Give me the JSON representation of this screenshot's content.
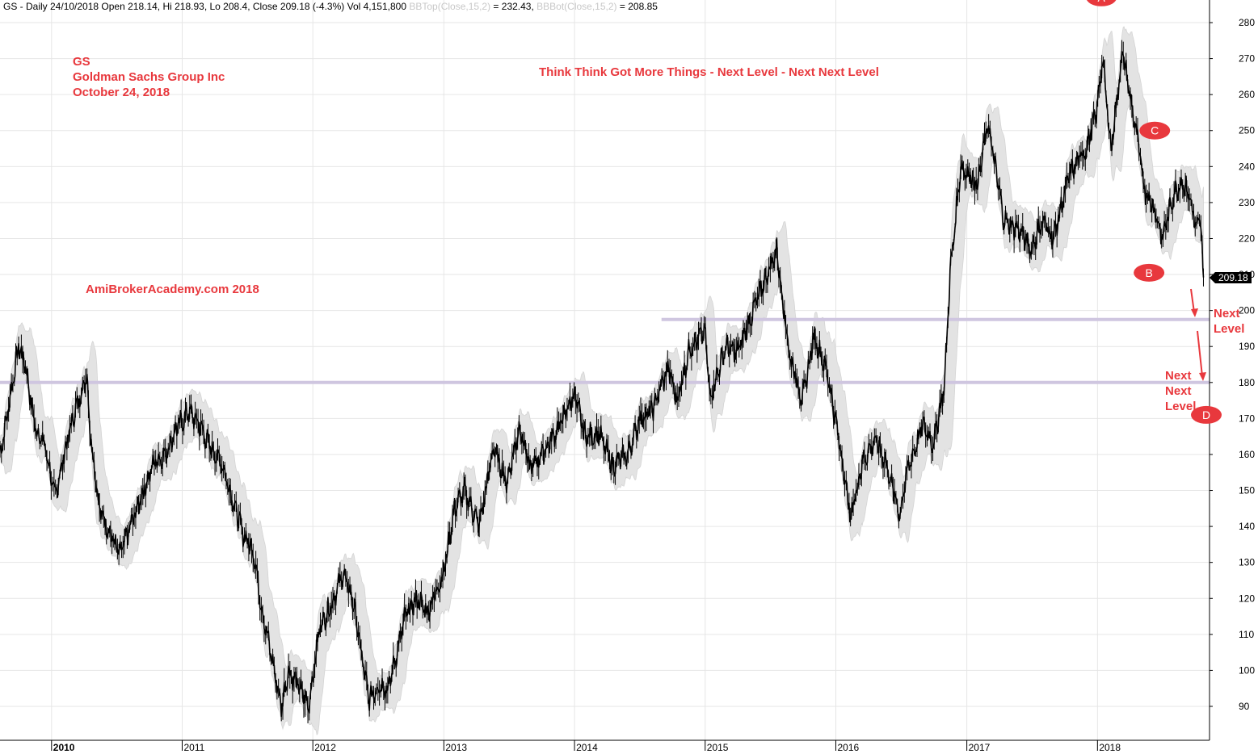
{
  "header": {
    "prefix": "GS - Daily 24/10/2018 Open 218.14, Hi 218.93, Lo 208.4, Close 209.18 (-4.3%) Vol 4,151,800",
    "bbtop_label": "BBTop(Close,15,2)",
    "bbtop_value": "= 232.43,",
    "bbbot_label": "BBBot(Close,15,2)",
    "bbbot_value": "= 208.85"
  },
  "annotations": {
    "ticker": "GS",
    "company": "Goldman Sachs Group Inc",
    "date": "October 24, 2018",
    "tagline": "Think Think Got More Things - Next Level - Next Next Level",
    "watermark": "AmiBrokerAcademy.com  2018",
    "next_level": [
      "Next",
      "Level"
    ],
    "next_next_level": [
      "Next",
      "Next",
      "Level"
    ],
    "markers": {
      "A": "A",
      "B": "B",
      "C": "C",
      "D": "D"
    },
    "last_price": "209.18"
  },
  "colors": {
    "price": "#000000",
    "bands": "#e3e3e3",
    "levels": "#cfc6e0",
    "annotation": "#e8383d",
    "grid": "#e6e6e6"
  },
  "chart_data": {
    "type": "line",
    "x_axis": "date",
    "y_axis_position": "right",
    "ylim": [
      80,
      284
    ],
    "y_ticks": [
      90,
      100,
      110,
      120,
      130,
      140,
      150,
      160,
      170,
      180,
      190,
      200,
      210,
      220,
      230,
      240,
      250,
      260,
      270,
      280
    ],
    "x_ticks": [
      "2010",
      "2011",
      "2012",
      "2013",
      "2014",
      "2015",
      "2016",
      "2017",
      "2018"
    ],
    "xlim": [
      "2009-08-10",
      "2018-11-10"
    ],
    "grid": true,
    "series": [
      {
        "name": "",
        "role": "close",
        "points": [
          [
            "2009-08-10",
            160
          ],
          [
            "2009-09-01",
            172
          ],
          [
            "2009-10-01",
            190
          ],
          [
            "2009-10-20",
            185
          ],
          [
            "2009-11-15",
            168
          ],
          [
            "2009-12-15",
            162
          ],
          [
            "2010-01-10",
            148
          ],
          [
            "2010-02-05",
            160
          ],
          [
            "2010-03-01",
            170
          ],
          [
            "2010-04-10",
            182
          ],
          [
            "2010-04-20",
            165
          ],
          [
            "2010-05-15",
            145
          ],
          [
            "2010-06-15",
            138
          ],
          [
            "2010-07-10",
            132
          ],
          [
            "2010-08-10",
            140
          ],
          [
            "2010-09-15",
            150
          ],
          [
            "2010-10-15",
            158
          ],
          [
            "2010-11-15",
            160
          ],
          [
            "2010-12-15",
            167
          ],
          [
            "2011-01-20",
            172
          ],
          [
            "2011-02-20",
            168
          ],
          [
            "2011-03-20",
            162
          ],
          [
            "2011-04-20",
            158
          ],
          [
            "2011-05-20",
            148
          ],
          [
            "2011-06-20",
            138
          ],
          [
            "2011-07-20",
            133
          ],
          [
            "2011-08-10",
            118
          ],
          [
            "2011-09-15",
            100
          ],
          [
            "2011-10-05",
            90
          ],
          [
            "2011-10-25",
            100
          ],
          [
            "2011-11-25",
            95
          ],
          [
            "2011-12-20",
            90
          ],
          [
            "2012-01-20",
            112
          ],
          [
            "2012-02-20",
            118
          ],
          [
            "2012-03-27",
            127
          ],
          [
            "2012-04-25",
            118
          ],
          [
            "2012-05-15",
            105
          ],
          [
            "2012-06-05",
            92
          ],
          [
            "2012-07-05",
            96
          ],
          [
            "2012-07-30",
            95
          ],
          [
            "2012-09-15",
            115
          ],
          [
            "2012-10-20",
            120
          ],
          [
            "2012-11-15",
            116
          ],
          [
            "2012-12-31",
            127
          ],
          [
            "2013-01-31",
            145
          ],
          [
            "2013-02-28",
            150
          ],
          [
            "2013-04-10",
            140
          ],
          [
            "2013-05-20",
            162
          ],
          [
            "2013-06-25",
            152
          ],
          [
            "2013-08-01",
            168
          ],
          [
            "2013-08-30",
            156
          ],
          [
            "2013-10-15",
            162
          ],
          [
            "2013-11-20",
            168
          ],
          [
            "2013-12-31",
            177
          ],
          [
            "2014-01-31",
            165
          ],
          [
            "2014-03-10",
            166
          ],
          [
            "2014-04-15",
            157
          ],
          [
            "2014-05-31",
            160
          ],
          [
            "2014-07-01",
            170
          ],
          [
            "2014-08-05",
            172
          ],
          [
            "2014-09-20",
            184
          ],
          [
            "2014-10-15",
            175
          ],
          [
            "2014-11-20",
            190
          ],
          [
            "2014-12-31",
            194
          ],
          [
            "2015-01-15",
            176
          ],
          [
            "2015-02-28",
            190
          ],
          [
            "2015-03-31",
            188
          ],
          [
            "2015-05-15",
            200
          ],
          [
            "2015-07-20",
            217
          ],
          [
            "2015-08-24",
            188
          ],
          [
            "2015-09-30",
            175
          ],
          [
            "2015-11-01",
            193
          ],
          [
            "2015-12-10",
            182
          ],
          [
            "2016-01-20",
            158
          ],
          [
            "2016-02-11",
            142
          ],
          [
            "2016-03-15",
            158
          ],
          [
            "2016-04-20",
            164
          ],
          [
            "2016-05-20",
            158
          ],
          [
            "2016-06-27",
            143
          ],
          [
            "2016-07-20",
            156
          ],
          [
            "2016-08-31",
            168
          ],
          [
            "2016-09-30",
            163
          ],
          [
            "2016-10-31",
            180
          ],
          [
            "2016-11-15",
            210
          ],
          [
            "2016-12-15",
            240
          ],
          [
            "2017-01-31",
            235
          ],
          [
            "2017-03-01",
            252
          ],
          [
            "2017-04-15",
            225
          ],
          [
            "2017-05-31",
            222
          ],
          [
            "2017-06-30",
            217
          ],
          [
            "2017-08-01",
            225
          ],
          [
            "2017-08-31",
            220
          ],
          [
            "2017-10-15",
            238
          ],
          [
            "2017-11-30",
            245
          ],
          [
            "2017-12-29",
            255
          ],
          [
            "2018-01-15",
            270
          ],
          [
            "2018-02-08",
            245
          ],
          [
            "2018-03-12",
            272
          ],
          [
            "2018-04-15",
            252
          ],
          [
            "2018-05-15",
            233
          ],
          [
            "2018-06-10",
            228
          ],
          [
            "2018-07-01",
            220
          ],
          [
            "2018-08-01",
            232
          ],
          [
            "2018-08-25",
            236
          ],
          [
            "2018-09-15",
            232
          ],
          [
            "2018-10-05",
            222
          ],
          [
            "2018-10-15",
            226
          ],
          [
            "2018-10-24",
            209.18
          ]
        ]
      },
      {
        "name": "BBTop(Close,15,2)",
        "role": "bb_top",
        "last_value": 232.43
      },
      {
        "name": "BBBot(Close,15,2)",
        "role": "bb_bottom",
        "last_value": 208.85
      }
    ],
    "horizontal_levels": [
      {
        "label": "Next Level",
        "value": 197.5,
        "from": "2014-09-01",
        "to": "2018-11-10"
      },
      {
        "label": "Next Next Level",
        "value": 180,
        "from": "2009-08-10",
        "to": "2018-11-10"
      }
    ],
    "point_markers": [
      {
        "label": "A",
        "date": "2018-01-12",
        "value": 287
      },
      {
        "label": "C",
        "date": "2018-06-10",
        "value": 250
      },
      {
        "label": "B",
        "date": "2018-05-25",
        "value": 210.5
      },
      {
        "label": "D",
        "date": "2018-11-01",
        "value": 171
      }
    ]
  }
}
